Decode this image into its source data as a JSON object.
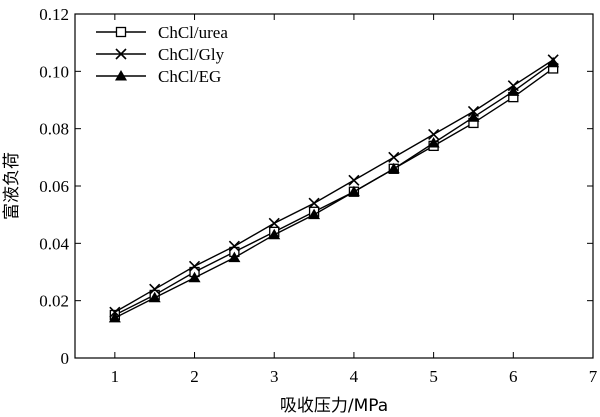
{
  "chart_data": {
    "type": "line",
    "xlabel": "吸收压力/MPa",
    "ylabel": "富液负荷",
    "xlim": [
      0.5,
      7
    ],
    "ylim": [
      0,
      0.12
    ],
    "x_ticks": [
      1,
      2,
      3,
      4,
      5,
      6,
      7
    ],
    "x_tick_labels": [
      "1",
      "2",
      "3",
      "4",
      "5",
      "6",
      "7"
    ],
    "y_ticks": [
      0,
      0.02,
      0.04,
      0.06,
      0.08,
      0.1,
      0.12
    ],
    "y_tick_labels": [
      "0",
      "0.02",
      "0.04",
      "0.06",
      "0.08",
      "0.10",
      "0.12"
    ],
    "grid": false,
    "legend_position": "top-left",
    "x": [
      1,
      1.5,
      2,
      2.5,
      3,
      3.5,
      4,
      4.5,
      5,
      5.5,
      6,
      6.5
    ],
    "series": [
      {
        "name": "ChCl/urea",
        "marker": "square-open",
        "values": [
          0.015,
          0.022,
          0.03,
          0.037,
          0.044,
          0.051,
          0.058,
          0.066,
          0.074,
          0.082,
          0.091,
          0.101
        ]
      },
      {
        "name": "ChCl/Gly",
        "marker": "x",
        "values": [
          0.016,
          0.024,
          0.032,
          0.039,
          0.047,
          0.054,
          0.062,
          0.07,
          0.078,
          0.086,
          0.095,
          0.104
        ]
      },
      {
        "name": "ChCl/EG",
        "marker": "triangle-filled",
        "values": [
          0.014,
          0.021,
          0.028,
          0.035,
          0.043,
          0.05,
          0.058,
          0.066,
          0.075,
          0.084,
          0.093,
          0.103
        ]
      }
    ]
  }
}
